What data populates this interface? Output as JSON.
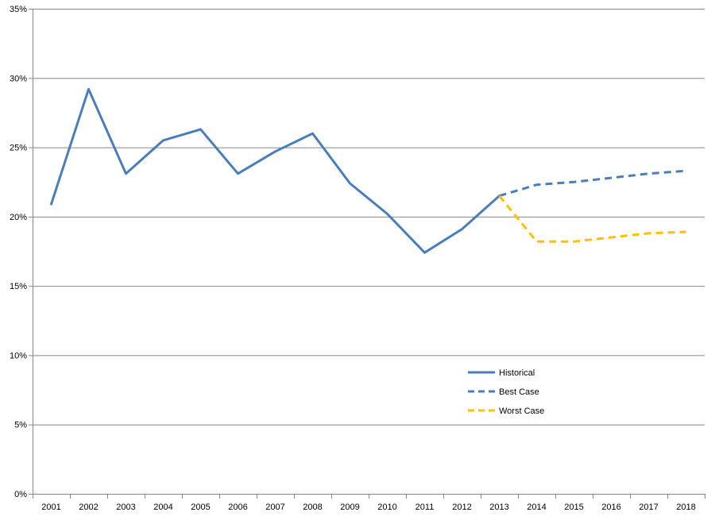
{
  "chart_data": {
    "type": "line",
    "title": "",
    "xlabel": "",
    "ylabel": "",
    "ylim": [
      0,
      35
    ],
    "y_ticks": [
      "0%",
      "5%",
      "10%",
      "15%",
      "20%",
      "25%",
      "30%",
      "35%"
    ],
    "categories": [
      "2001",
      "2002",
      "2003",
      "2004",
      "2005",
      "2006",
      "2007",
      "2008",
      "2009",
      "2010",
      "2011",
      "2012",
      "2013",
      "2014",
      "2015",
      "2016",
      "2017",
      "2018"
    ],
    "grid": true,
    "legend_position": "center-right",
    "series": [
      {
        "name": "Historical",
        "style": "solid",
        "color": "#4a7ebb",
        "values": [
          20.9,
          29.2,
          23.1,
          25.5,
          26.3,
          23.1,
          24.7,
          26.0,
          22.4,
          20.2,
          17.4,
          19.1,
          21.5,
          null,
          null,
          null,
          null,
          null
        ]
      },
      {
        "name": "Best Case",
        "style": "dashed",
        "color": "#4a7ebb",
        "values": [
          null,
          null,
          null,
          null,
          null,
          null,
          null,
          null,
          null,
          null,
          null,
          null,
          21.5,
          22.3,
          22.5,
          22.8,
          23.1,
          23.3
        ]
      },
      {
        "name": "Worst Case",
        "style": "dashed",
        "color": "#ffc000",
        "values": [
          null,
          null,
          null,
          null,
          null,
          null,
          null,
          null,
          null,
          null,
          null,
          null,
          21.5,
          18.2,
          18.2,
          18.5,
          18.8,
          18.9
        ]
      }
    ]
  }
}
